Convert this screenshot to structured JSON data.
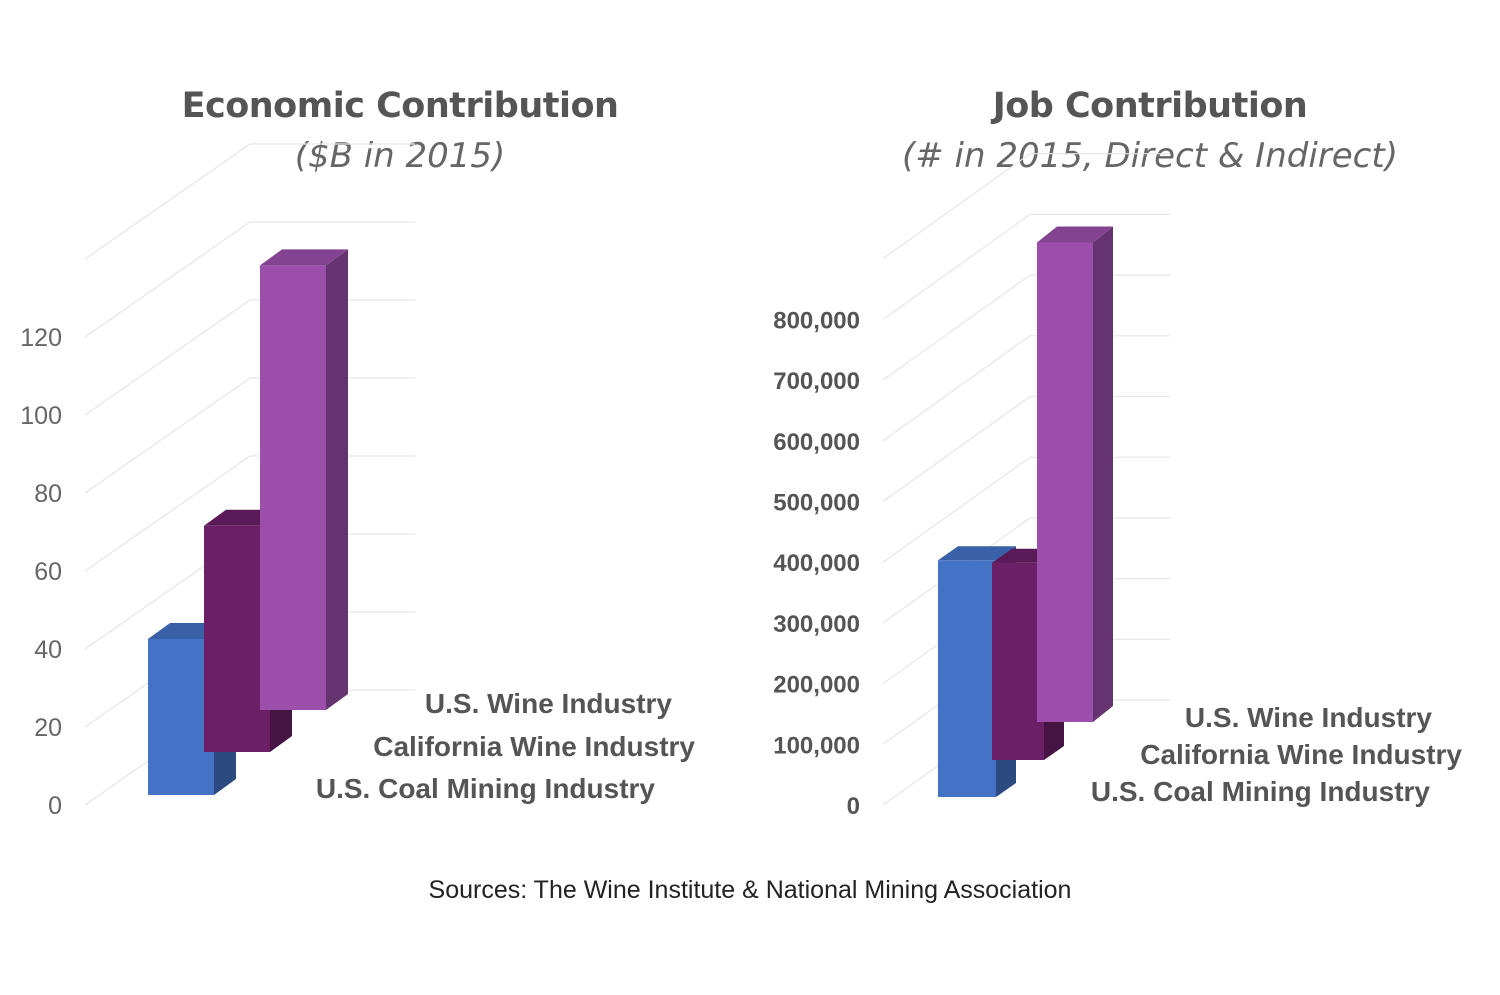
{
  "chart_data": [
    {
      "type": "bar",
      "title": "Economic Contribution",
      "subtitle": "($B in 2015)",
      "series": [
        {
          "name": "U.S. Coal Mining Industry",
          "values": [
            40
          ],
          "color": "#4472C4"
        },
        {
          "name": "California Wine Industry",
          "values": [
            58
          ],
          "color": "#6A1F66"
        },
        {
          "name": "U.S. Wine Industry",
          "values": [
            114
          ],
          "color": "#9B4FAB"
        }
      ],
      "yticks": [
        "0",
        "20",
        "40",
        "60",
        "80",
        "100",
        "120"
      ],
      "ylim": [
        0,
        140
      ],
      "legend": [
        "U.S. Wine Industry",
        "California Wine Industry",
        "U.S. Coal Mining Industry"
      ]
    },
    {
      "type": "bar",
      "title": "Job Contribution",
      "subtitle": "(# in 2015, Direct & Indirect)",
      "series": [
        {
          "name": "U.S. Coal Mining Industry",
          "values": [
            390000
          ],
          "color": "#4472C4"
        },
        {
          "name": "California Wine Industry",
          "values": [
            325000
          ],
          "color": "#6A1F66"
        },
        {
          "name": "U.S. Wine Industry",
          "values": [
            790000
          ],
          "color": "#9B4FAB"
        }
      ],
      "yticks": [
        "0",
        "100,000",
        "200,000",
        "300,000",
        "400,000",
        "500,000",
        "600,000",
        "700,000",
        "800,000"
      ],
      "ylim": [
        0,
        900000
      ],
      "legend": [
        "U.S. Wine Industry",
        "California Wine Industry",
        "U.S. Coal Mining Industry"
      ]
    }
  ],
  "source": "Sources: The Wine Institute & National Mining Association"
}
